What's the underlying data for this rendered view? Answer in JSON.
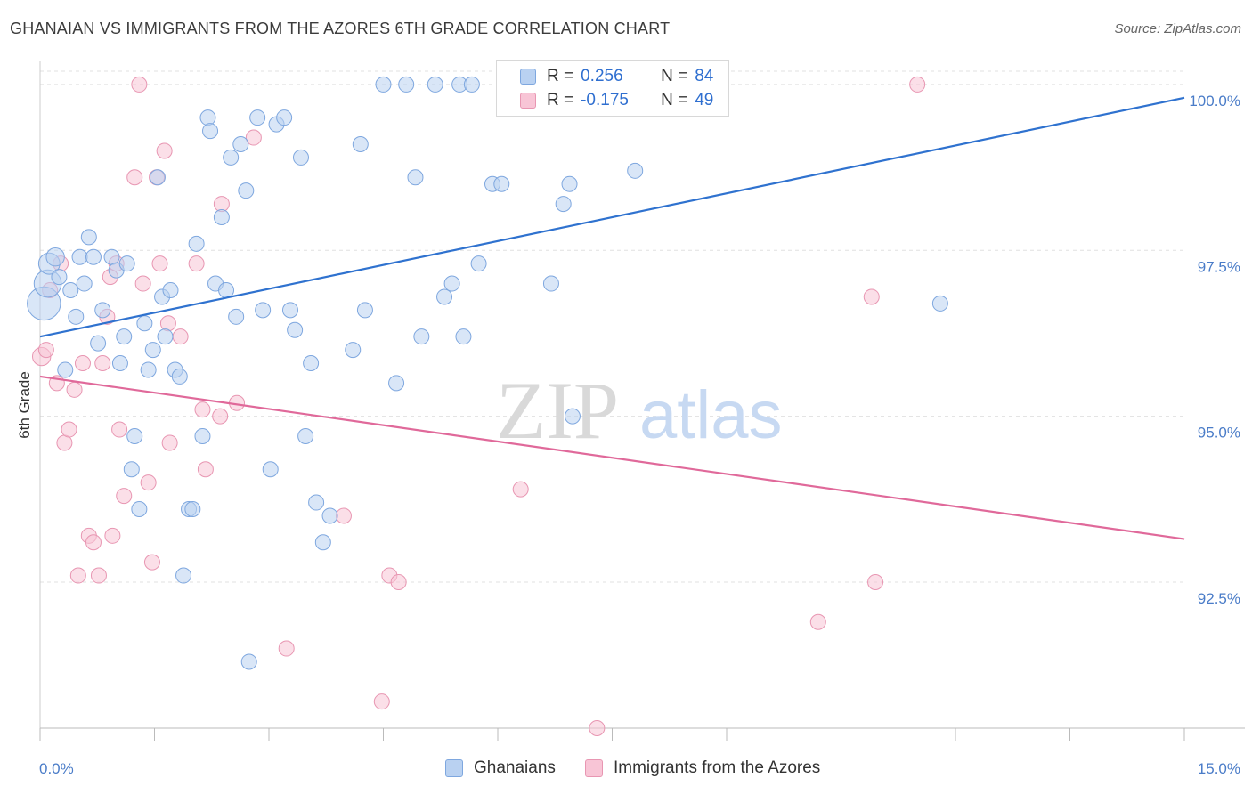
{
  "title": "GHANAIAN VS IMMIGRANTS FROM THE AZORES 6TH GRADE CORRELATION CHART",
  "source": "Source: ZipAtlas.com",
  "watermark": {
    "zip": "ZIP",
    "atlas": "atlas"
  },
  "legend": {
    "ghanaians": {
      "r_label": "R =",
      "r_value": "0.256",
      "n_label": "N =",
      "n_value": "84"
    },
    "azores": {
      "r_label": "R =",
      "r_value": "-0.175",
      "n_label": "N =",
      "n_value": "49"
    }
  },
  "bottom_legend": {
    "ghanaians": "Ghanaians",
    "azores": "Immigrants from the Azores"
  },
  "colors": {
    "blue_fill": "#b9d1f1",
    "blue_stroke": "#7ea7df",
    "blue_line": "#2f72cf",
    "pink_fill": "#f8c5d6",
    "pink_stroke": "#e896b2",
    "pink_line": "#e0699a",
    "grid": "#e0e0e0",
    "tick_text": "#4a7cc8"
  },
  "chart_data": {
    "type": "scatter",
    "title": "GHANAIAN VS IMMIGRANTS FROM THE AZORES 6TH GRADE CORRELATION CHART",
    "xlabel": "",
    "ylabel": "6th Grade",
    "xlim": [
      0,
      15
    ],
    "ylim": [
      90.3,
      100.2
    ],
    "x_tick_labels": [
      "0.0%",
      "15.0%"
    ],
    "y_ticks": [
      92.5,
      95.0,
      97.5,
      100.0
    ],
    "y_tick_labels": [
      "92.5%",
      "95.0%",
      "97.5%",
      "100.0%"
    ],
    "grid": "horizontal dashed",
    "legend_position": "top-center",
    "series": [
      {
        "name": "Ghanaians",
        "color": "#b9d1f1",
        "trend": {
          "x": [
            0,
            15
          ],
          "y": [
            96.2,
            99.8
          ]
        },
        "points": [
          [
            0.05,
            96.7,
            22
          ],
          [
            0.1,
            97.0,
            18
          ],
          [
            0.12,
            97.3,
            14
          ],
          [
            0.2,
            97.4,
            12
          ],
          [
            0.25,
            97.1,
            10
          ],
          [
            0.33,
            95.7,
            10
          ],
          [
            0.4,
            96.9,
            10
          ],
          [
            0.47,
            96.5,
            10
          ],
          [
            0.52,
            97.4,
            10
          ],
          [
            0.58,
            97.0,
            10
          ],
          [
            0.64,
            97.7,
            10
          ],
          [
            0.7,
            97.4,
            10
          ],
          [
            0.76,
            96.1,
            10
          ],
          [
            0.82,
            96.6,
            10
          ],
          [
            0.94,
            97.4,
            10
          ],
          [
            1.0,
            97.2,
            10
          ],
          [
            1.05,
            95.8,
            10
          ],
          [
            1.1,
            96.2,
            10
          ],
          [
            1.14,
            97.3,
            10
          ],
          [
            1.2,
            94.2,
            10
          ],
          [
            1.24,
            94.7,
            10
          ],
          [
            1.3,
            93.6,
            10
          ],
          [
            1.37,
            96.4,
            10
          ],
          [
            1.42,
            95.7,
            10
          ],
          [
            1.48,
            96.0,
            10
          ],
          [
            1.54,
            98.6,
            10
          ],
          [
            1.6,
            96.8,
            10
          ],
          [
            1.64,
            96.2,
            10
          ],
          [
            1.71,
            96.9,
            10
          ],
          [
            1.77,
            95.7,
            10
          ],
          [
            1.83,
            95.6,
            10
          ],
          [
            1.88,
            92.6,
            10
          ],
          [
            1.95,
            93.6,
            10
          ],
          [
            2.0,
            93.6,
            10
          ],
          [
            2.05,
            97.6,
            10
          ],
          [
            2.13,
            94.7,
            10
          ],
          [
            2.2,
            99.5,
            10
          ],
          [
            2.23,
            99.3,
            10
          ],
          [
            2.3,
            97.0,
            10
          ],
          [
            2.38,
            98.0,
            10
          ],
          [
            2.44,
            96.9,
            10
          ],
          [
            2.5,
            98.9,
            10
          ],
          [
            2.57,
            96.5,
            10
          ],
          [
            2.63,
            99.1,
            10
          ],
          [
            2.7,
            98.4,
            10
          ],
          [
            2.74,
            91.3,
            10
          ],
          [
            2.85,
            99.5,
            10
          ],
          [
            2.92,
            96.6,
            10
          ],
          [
            3.02,
            94.2,
            10
          ],
          [
            3.1,
            99.4,
            10
          ],
          [
            3.2,
            99.5,
            10
          ],
          [
            3.28,
            96.6,
            10
          ],
          [
            3.34,
            96.3,
            10
          ],
          [
            3.42,
            98.9,
            10
          ],
          [
            3.48,
            94.7,
            10
          ],
          [
            3.55,
            95.8,
            10
          ],
          [
            3.62,
            93.7,
            10
          ],
          [
            3.71,
            93.1,
            10
          ],
          [
            3.8,
            93.5,
            10
          ],
          [
            4.1,
            96.0,
            10
          ],
          [
            4.2,
            99.1,
            10
          ],
          [
            4.26,
            96.6,
            10
          ],
          [
            4.5,
            100.0,
            10
          ],
          [
            4.67,
            95.5,
            10
          ],
          [
            4.8,
            100.0,
            10
          ],
          [
            4.92,
            98.6,
            10
          ],
          [
            5.0,
            96.2,
            10
          ],
          [
            5.18,
            100.0,
            10
          ],
          [
            5.3,
            96.8,
            10
          ],
          [
            5.4,
            97.0,
            10
          ],
          [
            5.5,
            100.0,
            10
          ],
          [
            5.55,
            96.2,
            10
          ],
          [
            5.66,
            100.0,
            10
          ],
          [
            5.75,
            97.3,
            10
          ],
          [
            5.93,
            98.5,
            10
          ],
          [
            6.05,
            98.5,
            10
          ],
          [
            6.2,
            99.7,
            10
          ],
          [
            6.7,
            97.0,
            10
          ],
          [
            6.86,
            98.2,
            10
          ],
          [
            6.94,
            98.5,
            10
          ],
          [
            6.98,
            95.0,
            10
          ],
          [
            7.45,
            100.0,
            10
          ],
          [
            7.2,
            100.1,
            10
          ],
          [
            7.8,
            98.7,
            10
          ],
          [
            11.8,
            96.7,
            10
          ]
        ]
      },
      {
        "name": "Immigrants from the Azores",
        "color": "#f8c5d6",
        "trend": {
          "x": [
            0,
            15
          ],
          "y": [
            95.6,
            93.15
          ]
        },
        "points": [
          [
            0.02,
            95.9,
            12
          ],
          [
            0.08,
            96.0,
            10
          ],
          [
            0.13,
            96.9,
            10
          ],
          [
            0.22,
            95.5,
            10
          ],
          [
            0.27,
            97.3,
            10
          ],
          [
            0.32,
            94.6,
            10
          ],
          [
            0.38,
            94.8,
            10
          ],
          [
            0.45,
            95.4,
            10
          ],
          [
            0.5,
            92.6,
            10
          ],
          [
            0.56,
            95.8,
            10
          ],
          [
            0.64,
            93.2,
            10
          ],
          [
            0.7,
            93.1,
            10
          ],
          [
            0.77,
            92.6,
            10
          ],
          [
            0.82,
            95.8,
            10
          ],
          [
            0.88,
            96.5,
            10
          ],
          [
            0.92,
            97.1,
            10
          ],
          [
            0.95,
            93.2,
            10
          ],
          [
            1.0,
            97.3,
            10
          ],
          [
            1.04,
            94.8,
            10
          ],
          [
            1.1,
            93.8,
            10
          ],
          [
            1.24,
            98.6,
            10
          ],
          [
            1.3,
            100.0,
            10
          ],
          [
            1.35,
            97.0,
            10
          ],
          [
            1.42,
            94.0,
            10
          ],
          [
            1.47,
            92.8,
            10
          ],
          [
            1.53,
            98.6,
            10
          ],
          [
            1.57,
            97.3,
            10
          ],
          [
            1.63,
            99.0,
            10
          ],
          [
            1.68,
            96.4,
            10
          ],
          [
            1.7,
            94.6,
            10
          ],
          [
            1.84,
            96.2,
            10
          ],
          [
            2.05,
            97.3,
            10
          ],
          [
            2.13,
            95.1,
            10
          ],
          [
            2.17,
            94.2,
            10
          ],
          [
            2.36,
            95.0,
            10
          ],
          [
            2.38,
            98.2,
            10
          ],
          [
            2.58,
            95.2,
            10
          ],
          [
            2.8,
            99.2,
            10
          ],
          [
            3.23,
            91.5,
            10
          ],
          [
            3.98,
            93.5,
            10
          ],
          [
            4.48,
            90.7,
            10
          ],
          [
            4.58,
            92.6,
            10
          ],
          [
            4.7,
            92.5,
            10
          ],
          [
            6.3,
            93.9,
            10
          ],
          [
            7.3,
            90.3,
            10
          ],
          [
            10.2,
            91.9,
            10
          ],
          [
            10.9,
            96.8,
            10
          ],
          [
            10.95,
            92.5,
            10
          ],
          [
            11.5,
            100.0,
            10
          ]
        ]
      }
    ]
  }
}
